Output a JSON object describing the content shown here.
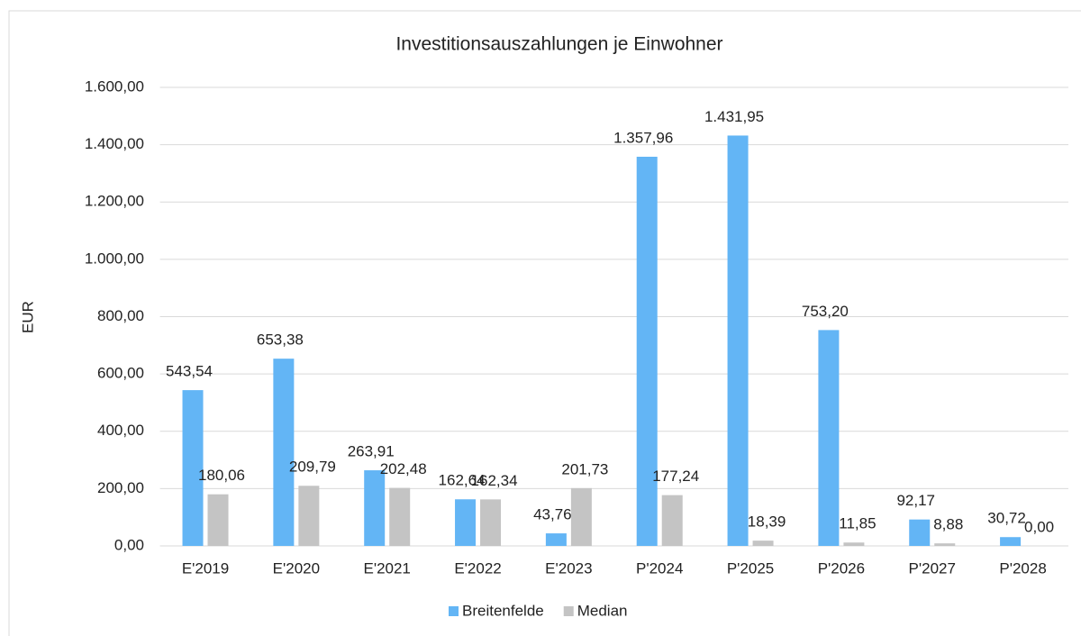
{
  "chart_data": {
    "type": "bar",
    "title": "Investitionsauszahlungen je Einwohner",
    "ylabel": "EUR",
    "categories": [
      "E'2019",
      "E'2020",
      "E'2021",
      "E'2022",
      "E'2023",
      "P'2024",
      "P'2025",
      "P'2026",
      "P'2027",
      "P'2028"
    ],
    "series": [
      {
        "name": "Breitenfelde",
        "color": "#63b5f5",
        "values": [
          543.54,
          653.38,
          263.91,
          162.64,
          43.76,
          1357.96,
          1431.95,
          753.2,
          92.17,
          30.72
        ],
        "value_labels": [
          "543,54",
          "653,38",
          "263,91",
          "162,64",
          "43,76",
          "1.357,96",
          "1.431,95",
          "753,20",
          "92,17",
          "30,72"
        ]
      },
      {
        "name": "Median",
        "color": "#c4c4c4",
        "values": [
          180.06,
          209.79,
          202.48,
          162.34,
          201.73,
          177.24,
          18.39,
          11.85,
          8.88,
          0.0
        ],
        "value_labels": [
          "180,06",
          "209,79",
          "202,48",
          "162,34",
          "201,73",
          "177,24",
          "18,39",
          "11,85",
          "8,88",
          "0,00"
        ]
      }
    ],
    "ylim": [
      0,
      1600
    ],
    "yticks": [
      {
        "value": 0,
        "label": "0,00"
      },
      {
        "value": 200,
        "label": "200,00"
      },
      {
        "value": 400,
        "label": "400,00"
      },
      {
        "value": 600,
        "label": "600,00"
      },
      {
        "value": 800,
        "label": "800,00"
      },
      {
        "value": 1000,
        "label": "1.000,00"
      },
      {
        "value": 1200,
        "label": "1.200,00"
      },
      {
        "value": 1400,
        "label": "1.400,00"
      },
      {
        "value": 1600,
        "label": "1.600,00"
      }
    ],
    "grid": true,
    "legend": "bottom"
  }
}
